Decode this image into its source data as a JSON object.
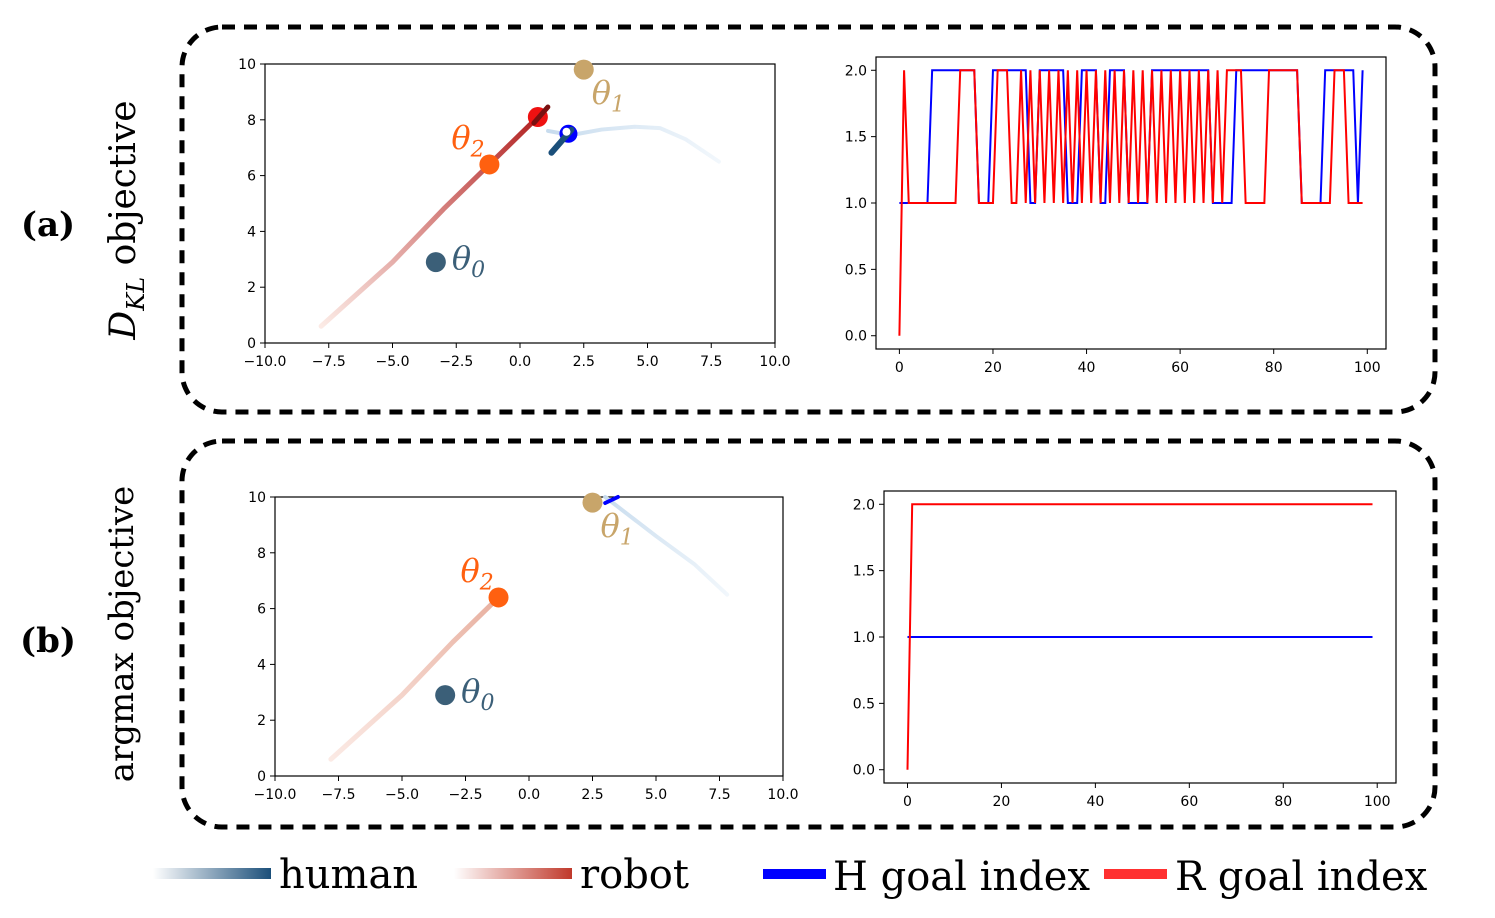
{
  "panels": [
    {
      "label": "(a)",
      "objective_main": "D",
      "objective_sub": "KL",
      "objective_rest": " objective"
    },
    {
      "label": "(b)",
      "objective_main": "argmax objective",
      "objective_sub": "",
      "objective_rest": ""
    }
  ],
  "legend": {
    "human": "human",
    "robot": "robot",
    "h_goal": "H goal index",
    "r_goal": "R goal index"
  },
  "colors": {
    "human": "#1b4f7a",
    "robot": "#c0392b",
    "h_goal": "#0000ff",
    "r_goal": "#ff0000",
    "theta0": "#3b5f78",
    "theta1": "#c8a56a",
    "theta2": "#ff6010"
  },
  "chart_data": [
    {
      "id": "a-traj",
      "type": "scatter",
      "xlim": [
        -10,
        10
      ],
      "ylim": [
        0,
        10
      ],
      "xticks": [
        "−10.0",
        "−7.5",
        "−5.0",
        "−2.5",
        "0.0",
        "2.5",
        "5.0",
        "7.5",
        "10.0"
      ],
      "yticks": [
        "0",
        "2",
        "4",
        "6",
        "8",
        "10"
      ],
      "goals": [
        {
          "name": "θ",
          "sub": "0",
          "x": -3.3,
          "y": 2.9
        },
        {
          "name": "θ",
          "sub": "1",
          "x": 2.5,
          "y": 9.8
        },
        {
          "name": "θ",
          "sub": "2",
          "x": -1.2,
          "y": 6.4
        }
      ],
      "robot_path": {
        "x": [
          -7.8,
          -5.0,
          -3.0,
          -1.2,
          0.7
        ],
        "y": [
          0.6,
          2.9,
          4.8,
          6.4,
          8.1
        ]
      },
      "robot_end": {
        "x": 0.7,
        "y": 8.1
      },
      "human_path": {
        "x": [
          7.8,
          6.5,
          5.5,
          4.5,
          3.2,
          2.0,
          1.1
        ],
        "y": [
          6.5,
          7.3,
          7.7,
          7.75,
          7.65,
          7.45,
          7.6
        ]
      },
      "human_end": {
        "x": 1.9,
        "y": 7.5
      }
    },
    {
      "id": "a-goal",
      "type": "line",
      "xlim": [
        -5,
        104
      ],
      "ylim": [
        -0.1,
        2.1
      ],
      "xticks": [
        0,
        20,
        40,
        60,
        80,
        100
      ],
      "yticks": [
        "0.0",
        "0.5",
        "1.0",
        "1.5",
        "2.0"
      ],
      "series": [
        {
          "name": "H goal index",
          "color": "#0000ff",
          "segments": [
            [
              0,
              6,
              1
            ],
            [
              7,
              16,
              2
            ],
            [
              17,
              19,
              1
            ],
            [
              20,
              27,
              2
            ],
            [
              28,
              29,
              1
            ],
            [
              30,
              35,
              2
            ],
            [
              36,
              38,
              1
            ],
            [
              39,
              42,
              2
            ],
            [
              43,
              44,
              1
            ],
            [
              45,
              48,
              2
            ],
            [
              49,
              53,
              1
            ],
            [
              54,
              66,
              2
            ],
            [
              67,
              71,
              1
            ],
            [
              72,
              85,
              2
            ],
            [
              86,
              90,
              1
            ],
            [
              91,
              97,
              2
            ],
            [
              98,
              98,
              1
            ],
            [
              99,
              99,
              2
            ]
          ]
        },
        {
          "name": "R goal index",
          "color": "#ff0000",
          "segments": [
            [
              0,
              0,
              0
            ],
            [
              1,
              1,
              2
            ],
            [
              2,
              12,
              1
            ],
            [
              13,
              16,
              2
            ],
            [
              17,
              20,
              1
            ],
            [
              21,
              23,
              2
            ],
            [
              24,
              25,
              1
            ],
            [
              26,
              69,
              "alt"
            ],
            [
              70,
              73,
              2
            ],
            [
              74,
              78,
              1
            ],
            [
              79,
              85,
              2
            ],
            [
              86,
              92,
              1
            ],
            [
              93,
              95,
              2
            ],
            [
              96,
              99,
              1
            ]
          ]
        }
      ]
    },
    {
      "id": "b-traj",
      "type": "scatter",
      "xlim": [
        -10,
        10
      ],
      "ylim": [
        0,
        10
      ],
      "xticks": [
        "−10.0",
        "−7.5",
        "−5.0",
        "−2.5",
        "0.0",
        "2.5",
        "5.0",
        "7.5",
        "10.0"
      ],
      "yticks": [
        "0",
        "2",
        "4",
        "6",
        "8",
        "10"
      ],
      "goals": [
        {
          "name": "θ",
          "sub": "0",
          "x": -3.3,
          "y": 2.9
        },
        {
          "name": "θ",
          "sub": "1",
          "x": 2.5,
          "y": 9.8
        },
        {
          "name": "θ",
          "sub": "2",
          "x": -1.2,
          "y": 6.4
        }
      ],
      "robot_path": {
        "x": [
          -7.8,
          -5.0,
          -3.0,
          -1.2
        ],
        "y": [
          0.6,
          2.9,
          4.8,
          6.4
        ]
      },
      "human_path": {
        "x": [
          7.8,
          6.5,
          5.0,
          4.0,
          3.0
        ],
        "y": [
          6.5,
          7.6,
          8.6,
          9.3,
          10.0
        ]
      }
    },
    {
      "id": "b-goal",
      "type": "line",
      "xlim": [
        -5,
        104
      ],
      "ylim": [
        -0.1,
        2.1
      ],
      "xticks": [
        0,
        20,
        40,
        60,
        80,
        100
      ],
      "yticks": [
        "0.0",
        "0.5",
        "1.0",
        "1.5",
        "2.0"
      ],
      "series": [
        {
          "name": "H goal index",
          "color": "#0000ff",
          "segments": [
            [
              0,
              99,
              1
            ]
          ]
        },
        {
          "name": "R goal index",
          "color": "#ff0000",
          "segments": [
            [
              0,
              0,
              0
            ],
            [
              1,
              99,
              2
            ]
          ]
        }
      ]
    }
  ]
}
